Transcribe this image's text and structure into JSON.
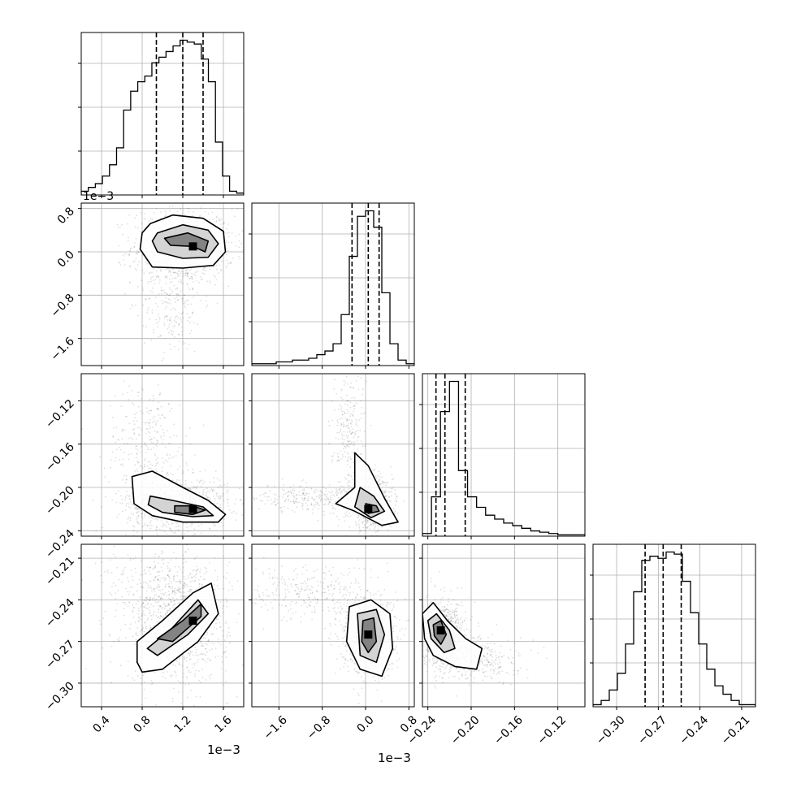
{
  "chart_data": {
    "type": "corner",
    "grid": true,
    "parameters": [
      {
        "range": [
          0.2,
          1.8
        ],
        "ticks": [
          0.4,
          0.8,
          1.2,
          1.6
        ],
        "tick_labels": [
          "0.4",
          "0.8",
          "1.2",
          "1.6"
        ],
        "offset_label": "1e−3",
        "histogram": {
          "counts": [
            2,
            4,
            6,
            10,
            16,
            25,
            45,
            55,
            60,
            63,
            70,
            73,
            76,
            79,
            82,
            81,
            80,
            72,
            60,
            28,
            10,
            2,
            1
          ],
          "quantiles": [
            0.94,
            1.2,
            1.4
          ]
        },
        "samples_cloud": [
          {
            "cx": 1.22,
            "sd": 0.2
          }
        ]
      },
      {
        "range": [
          -2.1,
          0.9
        ],
        "ticks": [
          -1.6,
          -0.8,
          0.0,
          0.8
        ],
        "tick_labels": [
          "−1.6",
          "−0.8",
          "0.0",
          "0.8"
        ],
        "offset_label": "1e−3",
        "histogram": {
          "counts": [
            1,
            1,
            1,
            2,
            2,
            3,
            3,
            4,
            6,
            8,
            12,
            28,
            60,
            82,
            85,
            76,
            40,
            12,
            3,
            1
          ],
          "quantiles": [
            -0.25,
            0.05,
            0.25
          ]
        }
      },
      {
        "range": [
          -0.245,
          -0.095
        ],
        "ticks": [
          -0.24,
          -0.2,
          -0.16,
          -0.12
        ],
        "tick_labels": [
          "−0.24",
          "−0.20",
          "−0.16",
          "−0.12"
        ],
        "histogram": {
          "counts": [
            2,
            30,
            95,
            118,
            50,
            30,
            22,
            16,
            13,
            10,
            8,
            6,
            4,
            3,
            2,
            1,
            1,
            1
          ],
          "quantiles": [
            -0.2325,
            -0.2242,
            -0.2055
          ]
        }
      },
      {
        "range": [
          -0.317,
          -0.2
        ],
        "ticks": [
          -0.3,
          -0.27,
          -0.24,
          -0.21
        ],
        "tick_labels": [
          "−0.30",
          "−0.27",
          "−0.24",
          "−0.21"
        ],
        "histogram": {
          "counts": [
            1,
            3,
            8,
            16,
            30,
            55,
            70,
            72,
            71,
            74,
            73,
            60,
            45,
            30,
            18,
            10,
            6,
            3,
            1,
            1
          ],
          "quantiles": [
            -0.2795,
            -0.2665,
            -0.2535
          ]
        }
      }
    ],
    "panels_2d": [
      {
        "x_param": 0,
        "y_param": 1,
        "contours": [
          [
            [
              0.88,
              0.52
            ],
            [
              1.1,
              0.68
            ],
            [
              1.4,
              0.62
            ],
            [
              1.6,
              0.38
            ],
            [
              1.62,
              0.0
            ],
            [
              1.5,
              -0.25
            ],
            [
              1.2,
              -0.3
            ],
            [
              0.9,
              -0.28
            ],
            [
              0.78,
              0.05
            ],
            [
              0.8,
              0.35
            ]
          ],
          [
            [
              0.95,
              0.35
            ],
            [
              1.2,
              0.5
            ],
            [
              1.45,
              0.4
            ],
            [
              1.55,
              0.15
            ],
            [
              1.45,
              -0.1
            ],
            [
              1.2,
              -0.12
            ],
            [
              0.95,
              0.0
            ],
            [
              0.9,
              0.2
            ]
          ],
          [
            [
              1.02,
              0.25
            ],
            [
              1.25,
              0.35
            ],
            [
              1.45,
              0.2
            ],
            [
              1.42,
              0.0
            ],
            [
              1.3,
              0.1
            ],
            [
              1.08,
              0.12
            ]
          ]
        ],
        "density_peak": [
          1.3,
          0.1
        ],
        "clouds": [
          {
            "cx": 1.2,
            "cy": 0.1,
            "sx": 0.25,
            "sy": 0.35,
            "n": 900
          },
          {
            "cx": 1.1,
            "cy": -0.9,
            "sx": 0.15,
            "sy": 0.5,
            "n": 250
          }
        ]
      },
      {
        "x_param": 0,
        "y_param": 2,
        "contours": [
          [
            [
              0.7,
              -0.19
            ],
            [
              0.9,
              -0.185
            ],
            [
              1.2,
              -0.2
            ],
            [
              1.45,
              -0.212
            ],
            [
              1.62,
              -0.225
            ],
            [
              1.55,
              -0.232
            ],
            [
              1.2,
              -0.232
            ],
            [
              0.9,
              -0.226
            ],
            [
              0.72,
              -0.215
            ]
          ],
          [
            [
              0.88,
              -0.208
            ],
            [
              1.1,
              -0.212
            ],
            [
              1.4,
              -0.218
            ],
            [
              1.5,
              -0.226
            ],
            [
              1.3,
              -0.227
            ],
            [
              1.0,
              -0.223
            ],
            [
              0.86,
              -0.216
            ]
          ],
          [
            [
              1.12,
              -0.217
            ],
            [
              1.3,
              -0.217
            ],
            [
              1.42,
              -0.221
            ],
            [
              1.3,
              -0.225
            ],
            [
              1.12,
              -0.223
            ]
          ]
        ],
        "density_peak": [
          1.3,
          -0.22
        ],
        "clouds": [
          {
            "cx": 1.15,
            "cy": -0.215,
            "sx": 0.25,
            "sy": 0.012,
            "n": 900
          },
          {
            "cx": 0.85,
            "cy": -0.16,
            "sx": 0.2,
            "sy": 0.03,
            "n": 300
          }
        ]
      },
      {
        "x_param": 1,
        "y_param": 2,
        "contours": [
          [
            [
              -0.2,
              -0.168
            ],
            [
              0.05,
              -0.18
            ],
            [
              0.35,
              -0.21
            ],
            [
              0.6,
              -0.232
            ],
            [
              0.3,
              -0.235
            ],
            [
              -0.2,
              -0.222
            ],
            [
              -0.55,
              -0.215
            ],
            [
              -0.2,
              -0.2
            ]
          ],
          [
            [
              -0.1,
              -0.2
            ],
            [
              0.15,
              -0.208
            ],
            [
              0.35,
              -0.222
            ],
            [
              0.1,
              -0.228
            ],
            [
              -0.2,
              -0.218
            ]
          ],
          [
            [
              0.0,
              -0.215
            ],
            [
              0.2,
              -0.217
            ],
            [
              0.25,
              -0.222
            ],
            [
              0.05,
              -0.224
            ]
          ]
        ],
        "density_peak": [
          0.05,
          -0.22
        ],
        "clouds": [
          {
            "cx": 0.1,
            "cy": -0.215,
            "sx": 0.2,
            "sy": 0.012,
            "n": 700
          },
          {
            "cx": -1.0,
            "cy": -0.21,
            "sx": 0.6,
            "sy": 0.006,
            "n": 300
          },
          {
            "cx": -0.3,
            "cy": -0.15,
            "sx": 0.15,
            "sy": 0.03,
            "n": 250
          }
        ]
      },
      {
        "x_param": 0,
        "y_param": 3,
        "contours": [
          [
            [
              0.75,
              -0.285
            ],
            [
              0.75,
              -0.27
            ],
            [
              1.0,
              -0.255
            ],
            [
              1.3,
              -0.235
            ],
            [
              1.48,
              -0.228
            ],
            [
              1.55,
              -0.25
            ],
            [
              1.35,
              -0.27
            ],
            [
              1.0,
              -0.29
            ],
            [
              0.8,
              -0.292
            ]
          ],
          [
            [
              0.85,
              -0.275
            ],
            [
              1.1,
              -0.26
            ],
            [
              1.35,
              -0.24
            ],
            [
              1.45,
              -0.25
            ],
            [
              1.25,
              -0.265
            ],
            [
              0.95,
              -0.28
            ]
          ],
          [
            [
              0.95,
              -0.268
            ],
            [
              1.2,
              -0.255
            ],
            [
              1.38,
              -0.243
            ],
            [
              1.38,
              -0.252
            ],
            [
              1.1,
              -0.27
            ]
          ]
        ],
        "density_peak": [
          1.3,
          -0.255
        ],
        "clouds": [
          {
            "cx": 1.15,
            "cy": -0.26,
            "sx": 0.25,
            "sy": 0.02,
            "n": 900
          },
          {
            "cx": 1.0,
            "cy": -0.23,
            "sx": 0.3,
            "sy": 0.015,
            "n": 300
          }
        ]
      },
      {
        "x_param": 1,
        "y_param": 3,
        "contours": [
          [
            [
              -0.3,
              -0.245
            ],
            [
              0.1,
              -0.24
            ],
            [
              0.45,
              -0.25
            ],
            [
              0.5,
              -0.275
            ],
            [
              0.3,
              -0.295
            ],
            [
              -0.1,
              -0.29
            ],
            [
              -0.35,
              -0.27
            ]
          ],
          [
            [
              -0.15,
              -0.25
            ],
            [
              0.2,
              -0.247
            ],
            [
              0.35,
              -0.265
            ],
            [
              0.2,
              -0.285
            ],
            [
              -0.1,
              -0.28
            ]
          ],
          [
            [
              -0.05,
              -0.255
            ],
            [
              0.15,
              -0.253
            ],
            [
              0.2,
              -0.27
            ],
            [
              0.05,
              -0.278
            ],
            [
              -0.07,
              -0.27
            ]
          ]
        ],
        "density_peak": [
          0.05,
          -0.265
        ],
        "clouds": [
          {
            "cx": 0.05,
            "cy": -0.265,
            "sx": 0.25,
            "sy": 0.014,
            "n": 900
          },
          {
            "cx": -1.0,
            "cy": -0.235,
            "sx": 0.6,
            "sy": 0.01,
            "n": 300
          }
        ]
      },
      {
        "x_param": 2,
        "y_param": 3,
        "contours": [
          [
            [
              -0.245,
              -0.25
            ],
            [
              -0.235,
              -0.242
            ],
            [
              -0.222,
              -0.255
            ],
            [
              -0.205,
              -0.268
            ],
            [
              -0.19,
              -0.275
            ],
            [
              -0.195,
              -0.29
            ],
            [
              -0.215,
              -0.288
            ],
            [
              -0.235,
              -0.28
            ],
            [
              -0.243,
              -0.268
            ]
          ],
          [
            [
              -0.24,
              -0.255
            ],
            [
              -0.232,
              -0.25
            ],
            [
              -0.22,
              -0.262
            ],
            [
              -0.215,
              -0.275
            ],
            [
              -0.225,
              -0.278
            ],
            [
              -0.237,
              -0.268
            ]
          ],
          [
            [
              -0.235,
              -0.258
            ],
            [
              -0.228,
              -0.255
            ],
            [
              -0.223,
              -0.265
            ],
            [
              -0.228,
              -0.272
            ],
            [
              -0.234,
              -0.266
            ]
          ]
        ],
        "density_peak": [
          -0.228,
          -0.262
        ],
        "clouds": [
          {
            "cx": -0.225,
            "cy": -0.265,
            "sx": 0.01,
            "sy": 0.012,
            "n": 800
          },
          {
            "cx": -0.195,
            "cy": -0.283,
            "sx": 0.02,
            "sy": 0.008,
            "n": 300
          }
        ]
      }
    ]
  }
}
